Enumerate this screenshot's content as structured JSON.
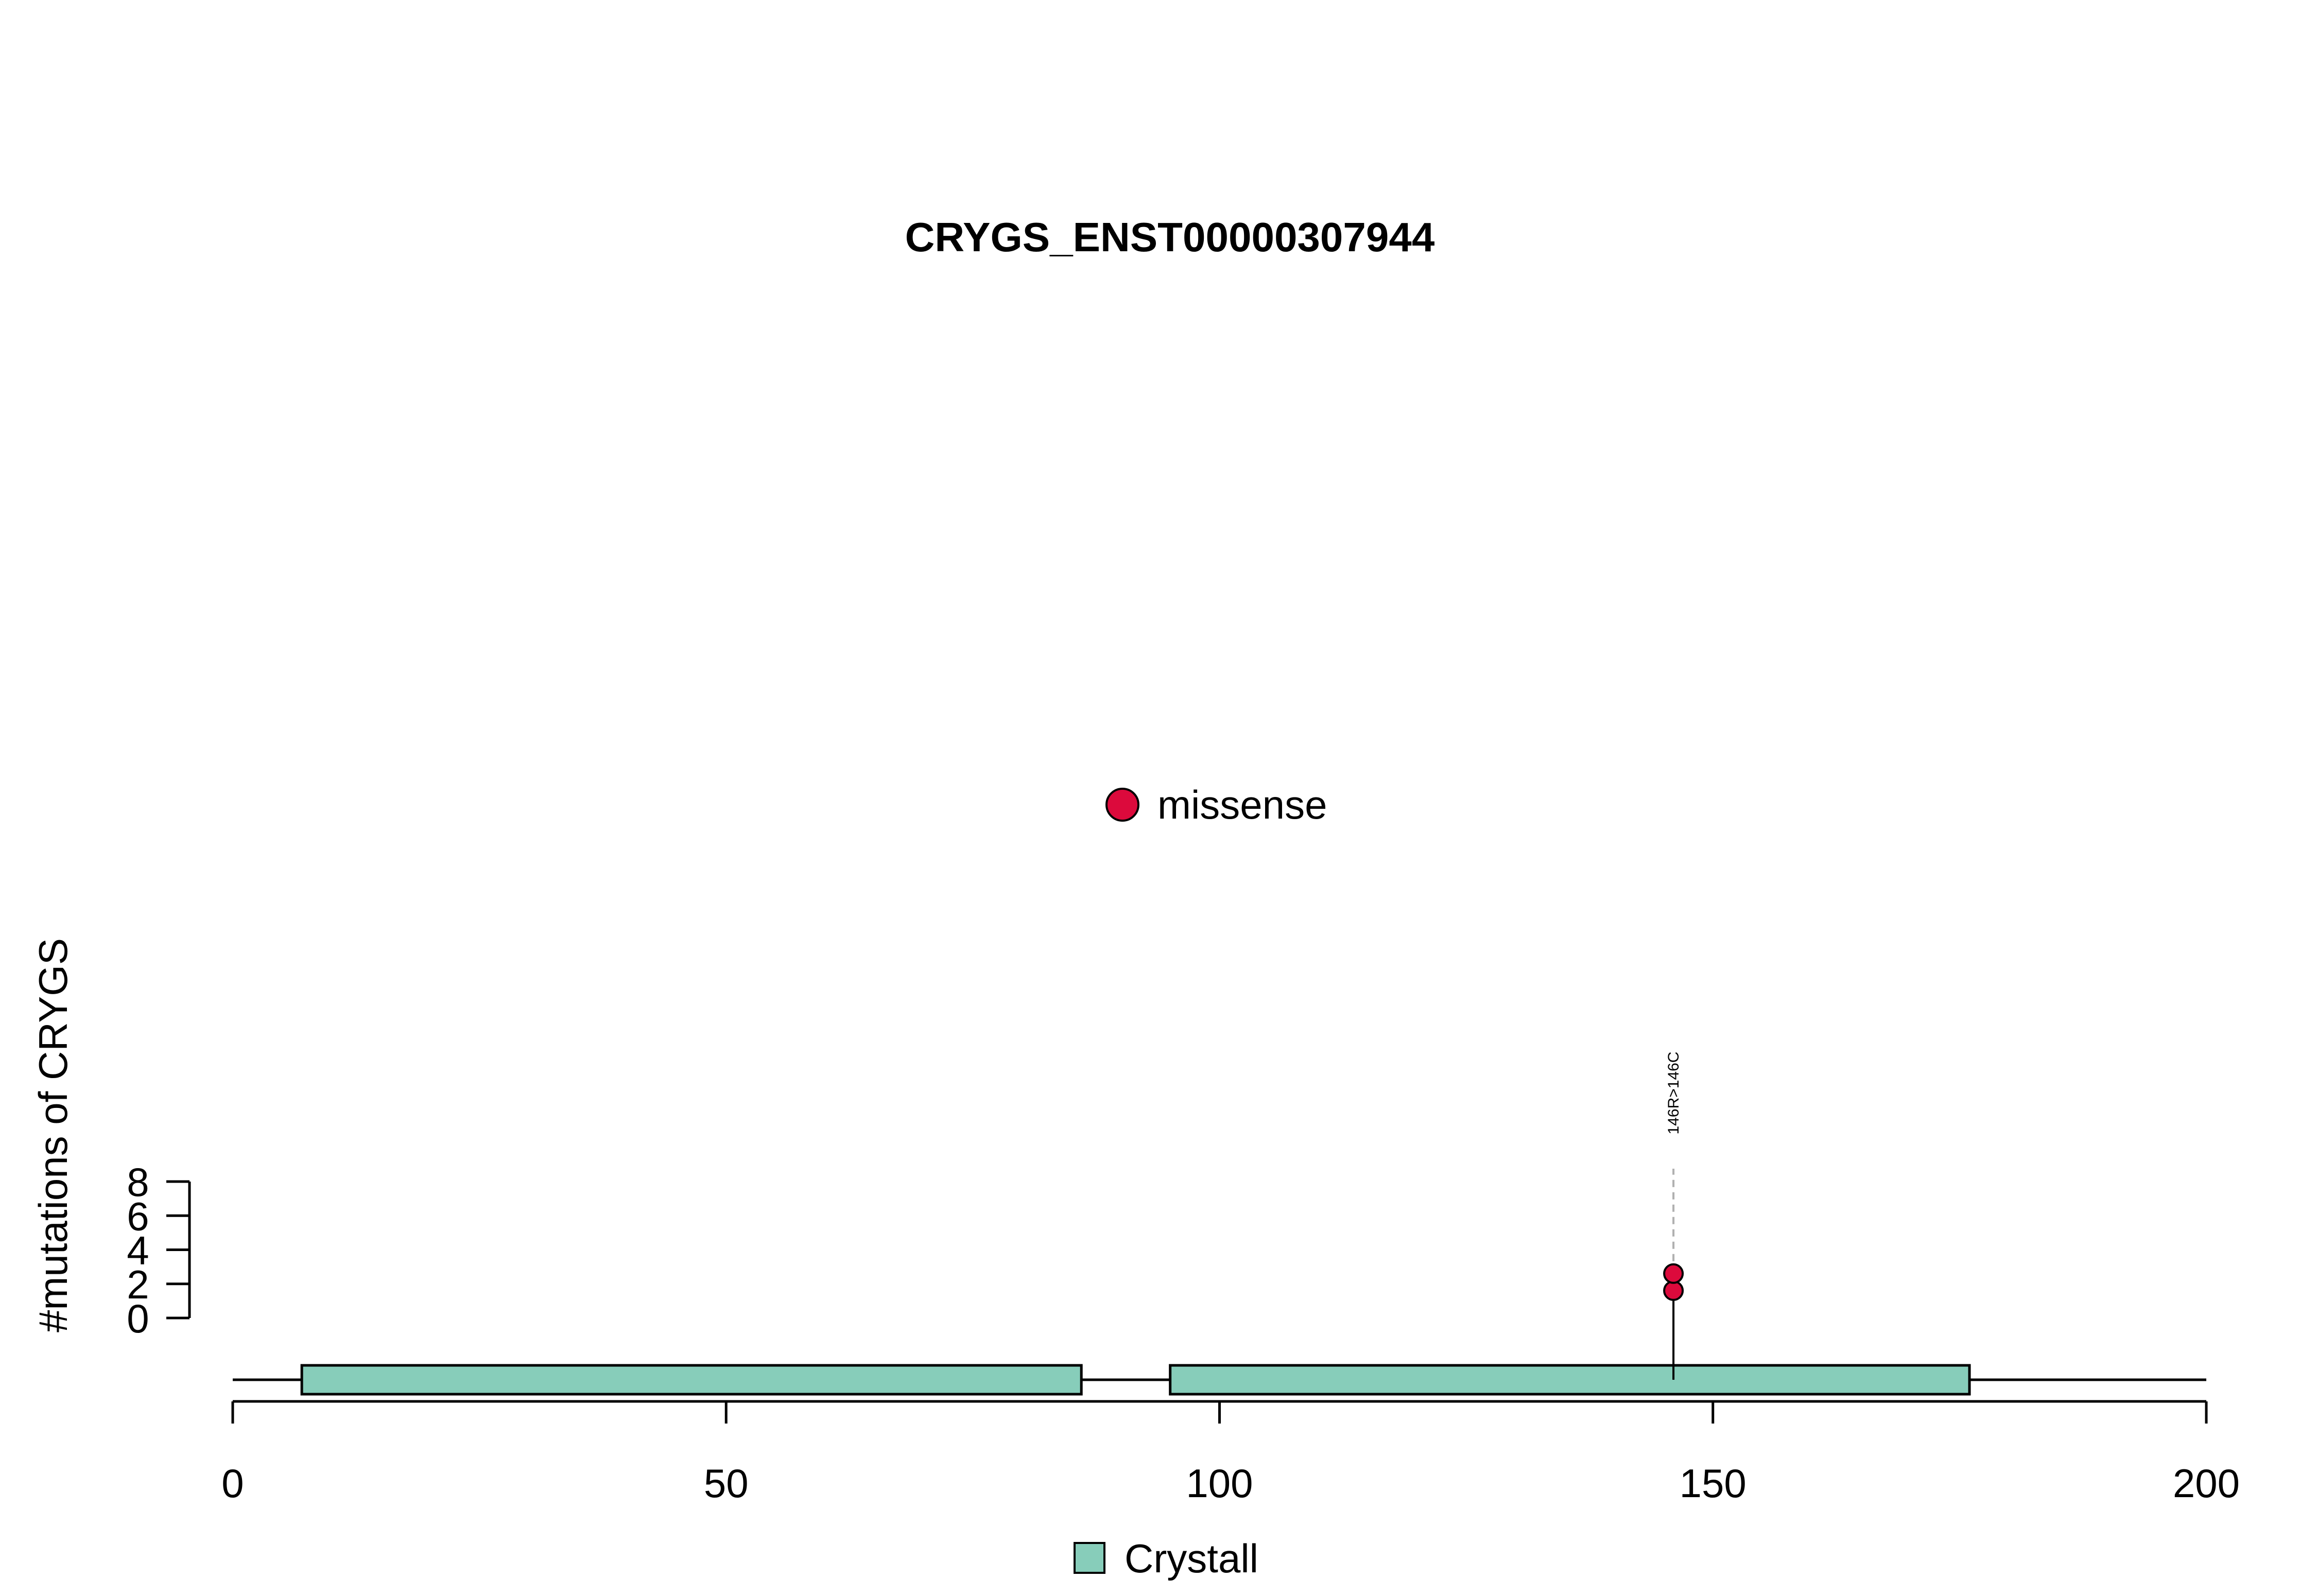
{
  "chart_data": {
    "type": "lollipop",
    "title": "CRYGS_ENST00000307944",
    "ylabel": "#mutations of CRYGS",
    "xlabel": "",
    "xlim": [
      0,
      200
    ],
    "x_ticks": [
      "0",
      "50",
      "100",
      "150",
      "200"
    ],
    "y_ticks": [
      "0",
      "2",
      "4",
      "6",
      "8"
    ],
    "ylim": [
      0,
      8
    ],
    "domains": [
      {
        "name": "Crystall",
        "start": 7,
        "end": 86
      },
      {
        "name": "Crystall",
        "start": 95,
        "end": 176
      }
    ],
    "mutations": [
      {
        "position": 146,
        "label": "146R>146C",
        "type": "missense",
        "count": 2
      }
    ],
    "mutation_legend": [
      {
        "label": "missense",
        "color": "#DC0A3C"
      }
    ],
    "domain_legend": [
      {
        "label": "Crystall",
        "color": "#87CDBA"
      }
    ]
  }
}
